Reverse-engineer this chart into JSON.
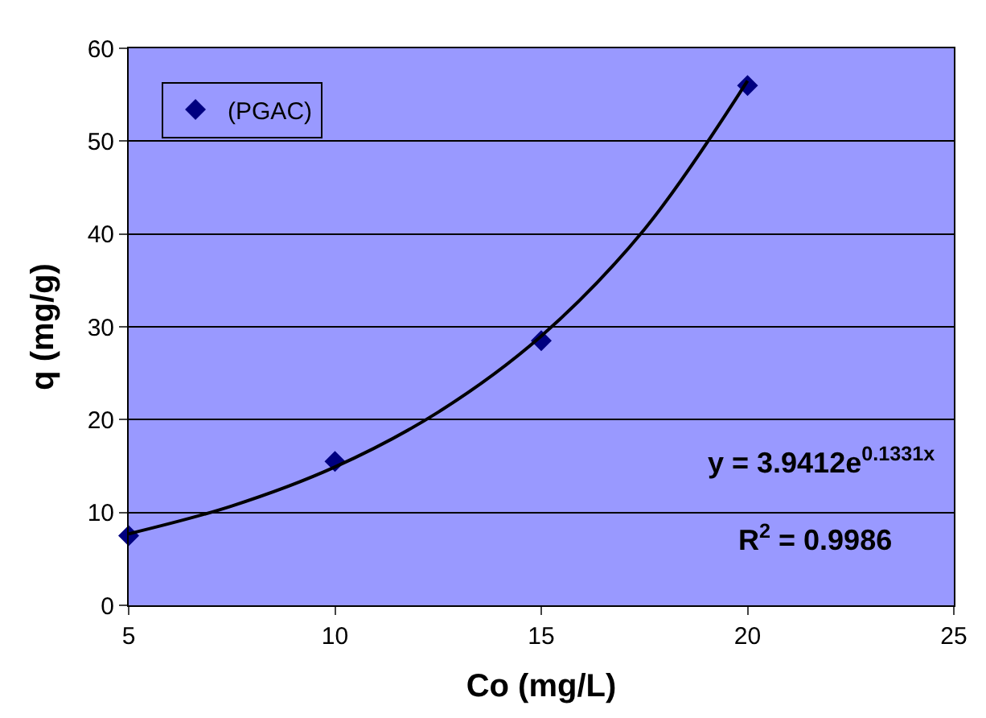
{
  "chart_data": {
    "type": "scatter",
    "xlabel": "Co (mg/L)",
    "ylabel": "q (mg/g)",
    "series": [
      {
        "name": "(PGAC)",
        "color": "#000080",
        "x": [
          5,
          10,
          15,
          20
        ],
        "values": [
          7.5,
          15.5,
          28.5,
          56
        ],
        "marker": "diamond"
      },
      {
        "type": "line",
        "color": "#000000",
        "x": [
          5,
          7.5,
          10,
          12.5,
          15,
          17.5,
          20
        ],
        "values": [
          7.7,
          10.7,
          14.9,
          20.8,
          29.0,
          40.5,
          56.5
        ],
        "marker": "none"
      }
    ],
    "xlim": [
      5,
      25
    ],
    "xticks": [
      5,
      10,
      15,
      20,
      25
    ],
    "ylim": [
      0,
      60
    ],
    "yticks": [
      0,
      10,
      20,
      30,
      40,
      50,
      60
    ],
    "grid": "y",
    "legend": "top left",
    "annotations": [
      "y = 3.9412e$^{0.1331x}$",
      "R$^{2}$ = 0.9986"
    ]
  }
}
